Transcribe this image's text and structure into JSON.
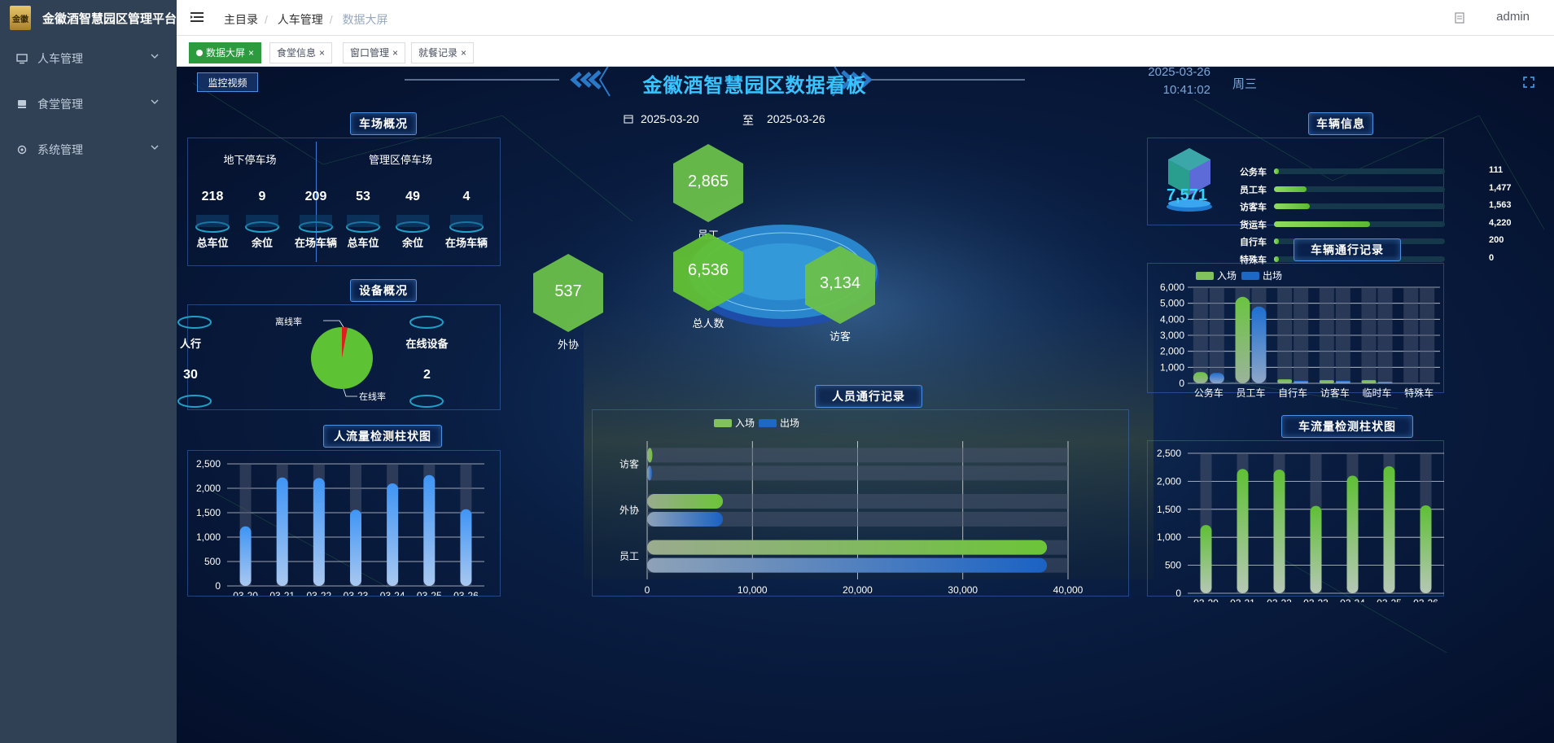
{
  "app": {
    "title": "金徽酒智慧园区管理平台",
    "logo_text": "金徽"
  },
  "sidebar": {
    "items": [
      {
        "label": "人车管理"
      },
      {
        "label": "食堂管理"
      },
      {
        "label": "系统管理"
      }
    ]
  },
  "header": {
    "breadcrumb": [
      "主目录",
      "人车管理",
      "数据大屏"
    ],
    "user": "admin"
  },
  "tabs": [
    {
      "label": "数据大屏"
    },
    {
      "label": "食堂信息"
    },
    {
      "label": "窗口管理"
    },
    {
      "label": "就餐记录"
    }
  ],
  "dashboard": {
    "title": "金徽酒智慧园区数据看板",
    "monitor_button": "监控视频",
    "date": "2025-03-26",
    "time": "10:41:02",
    "weekday": "周三",
    "date_from": "2025-03-20",
    "date_to_label": "至",
    "date_to": "2025-03-26",
    "parking": {
      "title": "车场概况",
      "groups": [
        {
          "name": "地下停车场",
          "stats": [
            {
              "value": "218",
              "label": "总车位"
            },
            {
              "value": "9",
              "label": "余位"
            },
            {
              "value": "209",
              "label": "在场车辆"
            }
          ]
        },
        {
          "name": "管理区停车场",
          "stats": [
            {
              "value": "53",
              "label": "总车位"
            },
            {
              "value": "49",
              "label": "余位"
            },
            {
              "value": "4",
              "label": "在场车辆"
            }
          ]
        }
      ]
    },
    "devices": {
      "title": "设备概况",
      "left_label": "人行",
      "left_value": "30",
      "right_label": "在线设备",
      "right_value": "2",
      "offline_label": "离线率",
      "online_label": "在线率",
      "offline_rate": 0.03
    },
    "people": {
      "employee": {
        "value": "2,865",
        "label": "员工"
      },
      "total": {
        "value": "6,536",
        "label": "总人数"
      },
      "contractor": {
        "value": "537",
        "label": "外协"
      },
      "visitor": {
        "value": "3,134",
        "label": "访客"
      }
    },
    "vehicle_info": {
      "title": "车辆信息",
      "total": "7,571",
      "rows": [
        {
          "label": "公务车",
          "value": "111",
          "frac": 0.01
        },
        {
          "label": "员工车",
          "value": "1,477",
          "frac": 0.19
        },
        {
          "label": "访客车",
          "value": "1,563",
          "frac": 0.21
        },
        {
          "label": "货运车",
          "value": "4,220",
          "frac": 0.56
        },
        {
          "label": "自行车",
          "value": "200",
          "frac": 0.03
        },
        {
          "label": "特殊车",
          "value": "0",
          "frac": 0.0
        }
      ]
    }
  },
  "chart_data": [
    {
      "id": "vehicle_pass",
      "type": "bar",
      "title": "车辆通行记录",
      "categories": [
        "公务车",
        "员工车",
        "自行车",
        "访客车",
        "临时车",
        "特殊车"
      ],
      "series": [
        {
          "name": "入场",
          "values": [
            700,
            5400,
            250,
            200,
            200,
            0
          ]
        },
        {
          "name": "出场",
          "values": [
            650,
            4800,
            150,
            150,
            100,
            0
          ]
        }
      ],
      "ylim": [
        0,
        6000
      ],
      "yticks": [
        "0",
        "1,000",
        "2,000",
        "3,000",
        "4,000",
        "5,000",
        "6,000"
      ]
    },
    {
      "id": "people_pass",
      "type": "bar",
      "orientation": "horizontal",
      "title": "人员通行记录",
      "categories": [
        "员工",
        "外协",
        "访客"
      ],
      "series": [
        {
          "name": "入场",
          "values": [
            38000,
            7200,
            500
          ]
        },
        {
          "name": "出场",
          "values": [
            38000,
            7200,
            300
          ]
        }
      ],
      "xlim": [
        0,
        40000
      ],
      "xticks": [
        "0",
        "10,000",
        "20,000",
        "30,000",
        "40,000"
      ]
    },
    {
      "id": "people_flow",
      "type": "bar",
      "title": "人流量检测柱状图",
      "categories": [
        "03-20",
        "03-21",
        "03-22",
        "03-23",
        "03-24",
        "03-25",
        "03-26"
      ],
      "values": [
        1220,
        2220,
        2210,
        1560,
        2100,
        2270,
        1570
      ],
      "ylim": [
        0,
        2500
      ],
      "yticks": [
        "0",
        "500",
        "1,000",
        "1,500",
        "2,000",
        "2,500"
      ]
    },
    {
      "id": "vehicle_flow",
      "type": "bar",
      "title": "车流量检测柱状图",
      "categories": [
        "03-20",
        "03-21",
        "03-22",
        "03-23",
        "03-24",
        "03-25",
        "03-26"
      ],
      "values": [
        1220,
        2220,
        2210,
        1560,
        2100,
        2270,
        1570
      ],
      "ylim": [
        0,
        2500
      ],
      "yticks": [
        "0",
        "500",
        "1,000",
        "1,500",
        "2,000",
        "2,500"
      ]
    }
  ]
}
